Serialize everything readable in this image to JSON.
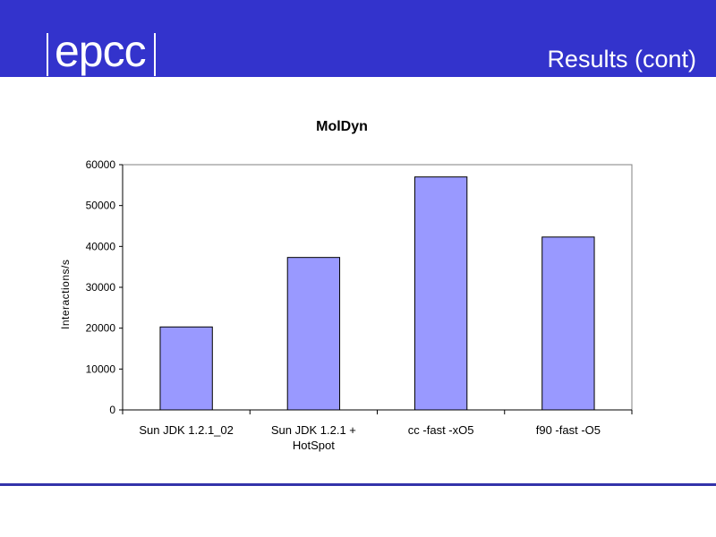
{
  "header": {
    "logo_text": "epcc",
    "title": "Results (cont)",
    "background": "#3333cc"
  },
  "chart_data": {
    "type": "bar",
    "title": "MolDyn",
    "xlabel": "",
    "ylabel": "Interactions/s",
    "categories": [
      [
        "Sun JDK 1.2.1_02"
      ],
      [
        "Sun JDK 1.2.1 +",
        "HotSpot"
      ],
      [
        "cc -fast -xO5"
      ],
      [
        "f90 -fast -O5"
      ]
    ],
    "values": [
      20300,
      37300,
      57000,
      42300
    ],
    "ylim": [
      0,
      60000
    ],
    "yticks": [
      0,
      10000,
      20000,
      30000,
      40000,
      50000,
      60000
    ],
    "bar_color": "#9999ff",
    "grid": false,
    "legend": "none"
  }
}
